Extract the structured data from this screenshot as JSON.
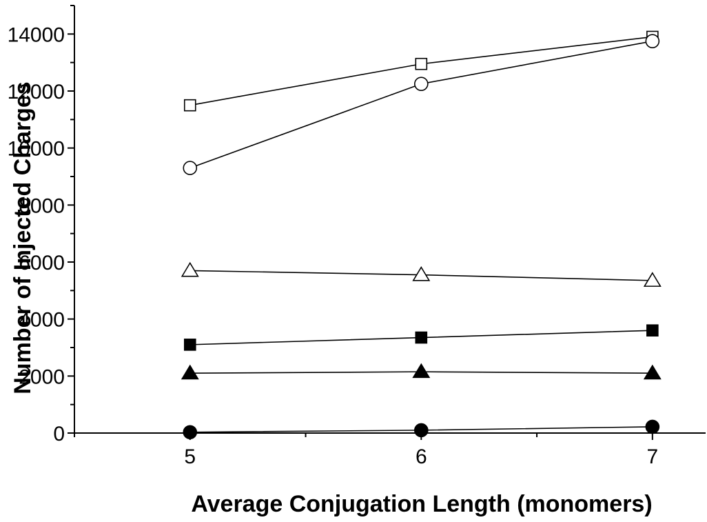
{
  "chart_data": {
    "type": "line",
    "xlabel": "Average Conjugation Length (monomers)",
    "ylabel": "Number of Injected Charges",
    "x": [
      5,
      6,
      7
    ],
    "xlim": [
      4.5,
      7.23
    ],
    "ylim": [
      0,
      15000
    ],
    "xticks": [
      5,
      6,
      7
    ],
    "yticks": [
      0,
      2000,
      4000,
      6000,
      8000,
      10000,
      12000,
      14000
    ],
    "grid": false,
    "legend": "none",
    "series": [
      {
        "marker": "square-open",
        "values": [
          11500,
          12950,
          13900
        ]
      },
      {
        "marker": "circle-open",
        "values": [
          9300,
          12250,
          13750
        ]
      },
      {
        "marker": "triangle-open",
        "values": [
          5700,
          5550,
          5350
        ]
      },
      {
        "marker": "square-filled",
        "values": [
          3100,
          3350,
          3600
        ]
      },
      {
        "marker": "triangle-filled",
        "values": [
          2100,
          2150,
          2100
        ]
      },
      {
        "marker": "circle-filled",
        "values": [
          30,
          100,
          220
        ]
      }
    ]
  }
}
